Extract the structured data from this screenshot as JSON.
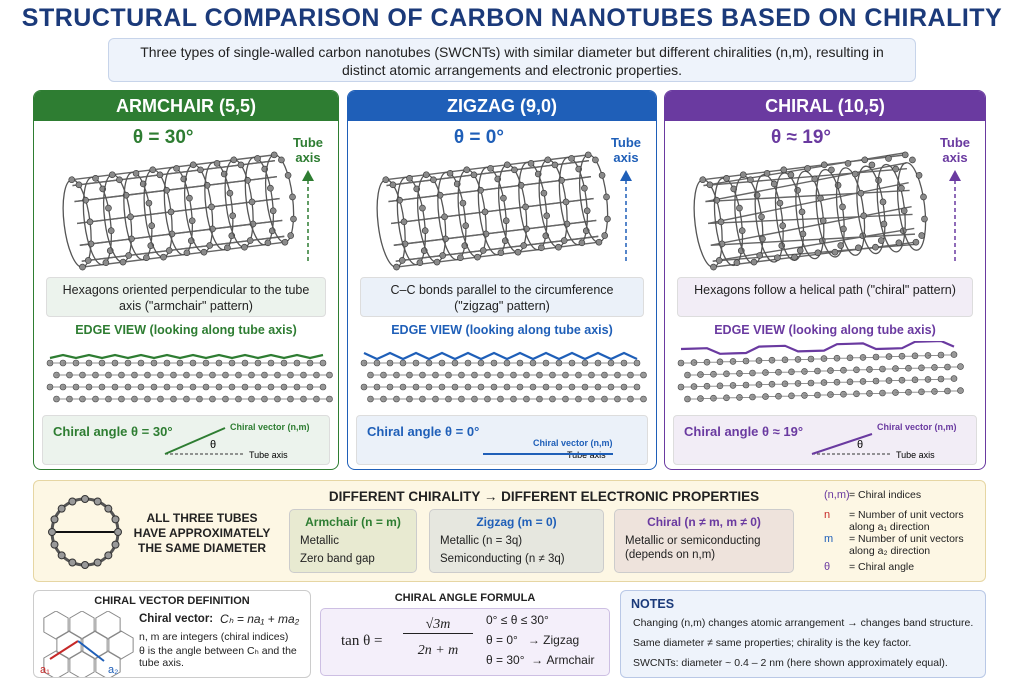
{
  "title": "STRUCTURAL COMPARISON OF CARBON NANOTUBES BASED ON CHIRALITY",
  "subtitle": "Three types of single-walled carbon nanotubes (SWCNTs) with similar diameter but different chiralities (n,m), resulting in distinct atomic arrangements and electronic properties.",
  "panels": [
    {
      "header": "ARMCHAIR (5,5)",
      "color": "#2e7d32",
      "angle": "θ = 30°",
      "axis_label": "Tube axis",
      "description": "Hexagons oriented perpendicular to the tube axis (\"armchair\" pattern)",
      "edge_view": "EDGE VIEW (looking along tube axis)",
      "chiral_angle": "Chiral angle θ = 30°",
      "chiral_vector": "Chiral vector (n,m)",
      "theta": "θ",
      "tube_axis": "Tube axis"
    },
    {
      "header": "ZIGZAG (9,0)",
      "color": "#1f5fb8",
      "angle": "θ = 0°",
      "axis_label": "Tube axis",
      "description": "C–C bonds parallel to the circumference (\"zigzag\" pattern)",
      "edge_view": "EDGE VIEW (looking along tube axis)",
      "chiral_angle": "Chiral angle θ = 0°",
      "chiral_vector": "Chiral vector (n,m)",
      "tube_axis": "Tube axis"
    },
    {
      "header": "CHIRAL (10,5)",
      "color": "#6a3aa0",
      "angle": "θ ≈ 19°",
      "axis_label": "Tube axis",
      "description": "Hexagons follow a helical path (\"chiral\" pattern)",
      "edge_view": "EDGE VIEW (looking along tube axis)",
      "chiral_angle": "Chiral angle θ ≈ 19°",
      "chiral_vector": "Chiral vector (n,m)",
      "theta": "θ",
      "tube_axis": "Tube axis"
    }
  ],
  "diameter_note": "ALL THREE TUBES HAVE APPROXIMATELY THE SAME DIAMETER",
  "properties": {
    "title": "DIFFERENT CHIRALITY → DIFFERENT ELECTRONIC PROPERTIES",
    "cards": [
      {
        "title": "Armchair (n = m)",
        "items": [
          "Metallic",
          "Zero band gap"
        ]
      },
      {
        "title": "Zigzag (m = 0)",
        "items": [
          "Metallic (n = 3q)",
          "Semiconducting (n ≠ 3q)"
        ]
      },
      {
        "title": "Chiral (n ≠ m, m ≠ 0)",
        "items": [
          "Metallic or semiconducting (depends on n,m)"
        ]
      }
    ]
  },
  "legend": [
    {
      "symbol": "(n,m)",
      "text": "= Chiral indices"
    },
    {
      "symbol": "n",
      "text": "= Number of unit vectors along a₁ direction"
    },
    {
      "symbol": "m",
      "text": "= Number of unit vectors along a₂ direction"
    },
    {
      "symbol": "θ",
      "text": "= Chiral angle"
    }
  ],
  "chiral_vector_definition": {
    "title": "CHIRAL VECTOR DEFINITION",
    "label": "Chiral vector:",
    "equation": "Cₕ = na₁ + ma₂",
    "lines": [
      "n, m are integers (chiral indices)",
      "θ is the angle between Cₕ and the tube axis."
    ],
    "a1": "a₁",
    "a2": "a₂"
  },
  "formula": {
    "title": "CHIRAL ANGLE FORMULA",
    "lhs": "tan θ =",
    "numerator": "√3m",
    "denominator": "2n + m",
    "conditions": [
      "0° ≤ θ ≤ 30°",
      "θ = 0°   → Zigzag",
      "θ = 30°  → Armchair"
    ]
  },
  "notes": {
    "title": "NOTES",
    "items": [
      "Changing (n,m) changes atomic arrangement → changes band structure.",
      "Same diameter ≠ same properties; chirality is the key factor.",
      "SWCNTs: diameter ~ 0.4 – 2 nm (here shown approximately equal)."
    ]
  }
}
